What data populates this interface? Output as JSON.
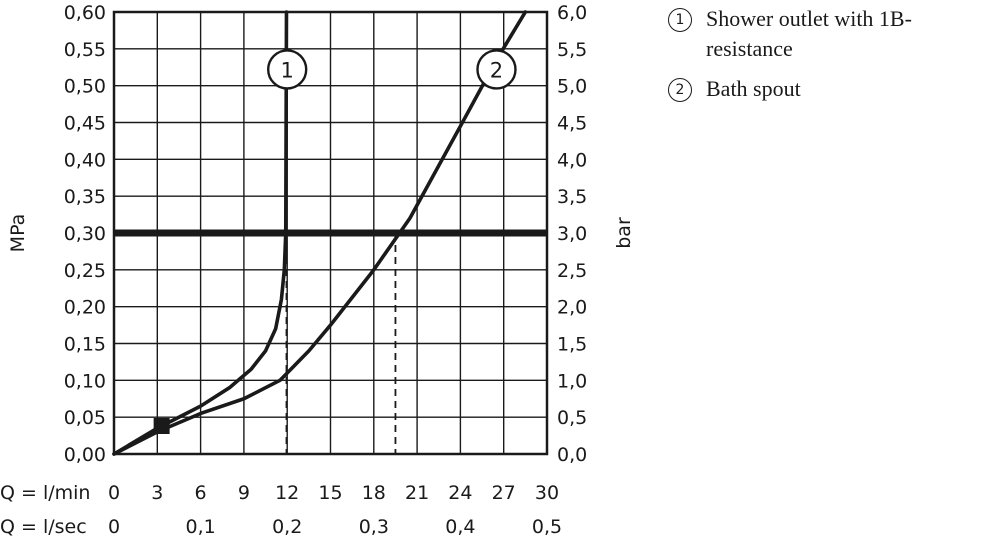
{
  "chart_data": {
    "type": "line",
    "xlabel_rows": [
      {
        "label": "Q = l/min",
        "ticks": [
          "0",
          "3",
          "6",
          "9",
          "12",
          "15",
          "18",
          "21",
          "24",
          "27",
          "30"
        ]
      },
      {
        "label": "Q = l/sec",
        "ticks": [
          "0",
          "0,1",
          "0,2",
          "0,3",
          "0,4",
          "0,5"
        ]
      }
    ],
    "ylabel_left": "MPa",
    "ylabel_right": "bar",
    "yticks_left": [
      "0,00",
      "0,05",
      "0,10",
      "0,15",
      "0,20",
      "0,25",
      "0,30",
      "0,35",
      "0,40",
      "0,45",
      "0,50",
      "0,55",
      "0,60"
    ],
    "yticks_right": [
      "0,0",
      "0,5",
      "1,0",
      "1,5",
      "2,0",
      "2,5",
      "3,0",
      "3,5",
      "4,0",
      "4,5",
      "5,0",
      "5,5",
      "6,0"
    ],
    "xlim": [
      0,
      30
    ],
    "ylim": [
      0,
      0.6
    ],
    "grid": true,
    "reference_line": {
      "y": 0.3
    },
    "series": [
      {
        "name": "Shower outlet with 1B-resistance",
        "marker": "1",
        "x": [
          0,
          3,
          6,
          8,
          9.5,
          10.5,
          11.2,
          11.6,
          11.8,
          11.9,
          11.95
        ],
        "y": [
          0,
          0.035,
          0.065,
          0.09,
          0.115,
          0.14,
          0.17,
          0.21,
          0.25,
          0.3,
          0.6
        ]
      },
      {
        "name": "Bath spout",
        "marker": "2",
        "x": [
          0,
          3,
          6,
          9,
          11.5,
          13.5,
          15,
          18,
          20.5,
          24,
          26.5,
          28.5
        ],
        "y": [
          0,
          0.03,
          0.055,
          0.075,
          0.1,
          0.14,
          0.175,
          0.25,
          0.32,
          0.445,
          0.535,
          0.6
        ]
      }
    ],
    "dashed_drops": [
      {
        "x": 11.95,
        "y": 0.3
      },
      {
        "x": 19.5,
        "y": 0.3
      }
    ],
    "start_marker": {
      "x": 3.3,
      "y": 0.038
    }
  },
  "legend": [
    {
      "num": "1",
      "text": "Shower outlet with 1B-resistance"
    },
    {
      "num": "2",
      "text": "Bath spout"
    }
  ]
}
